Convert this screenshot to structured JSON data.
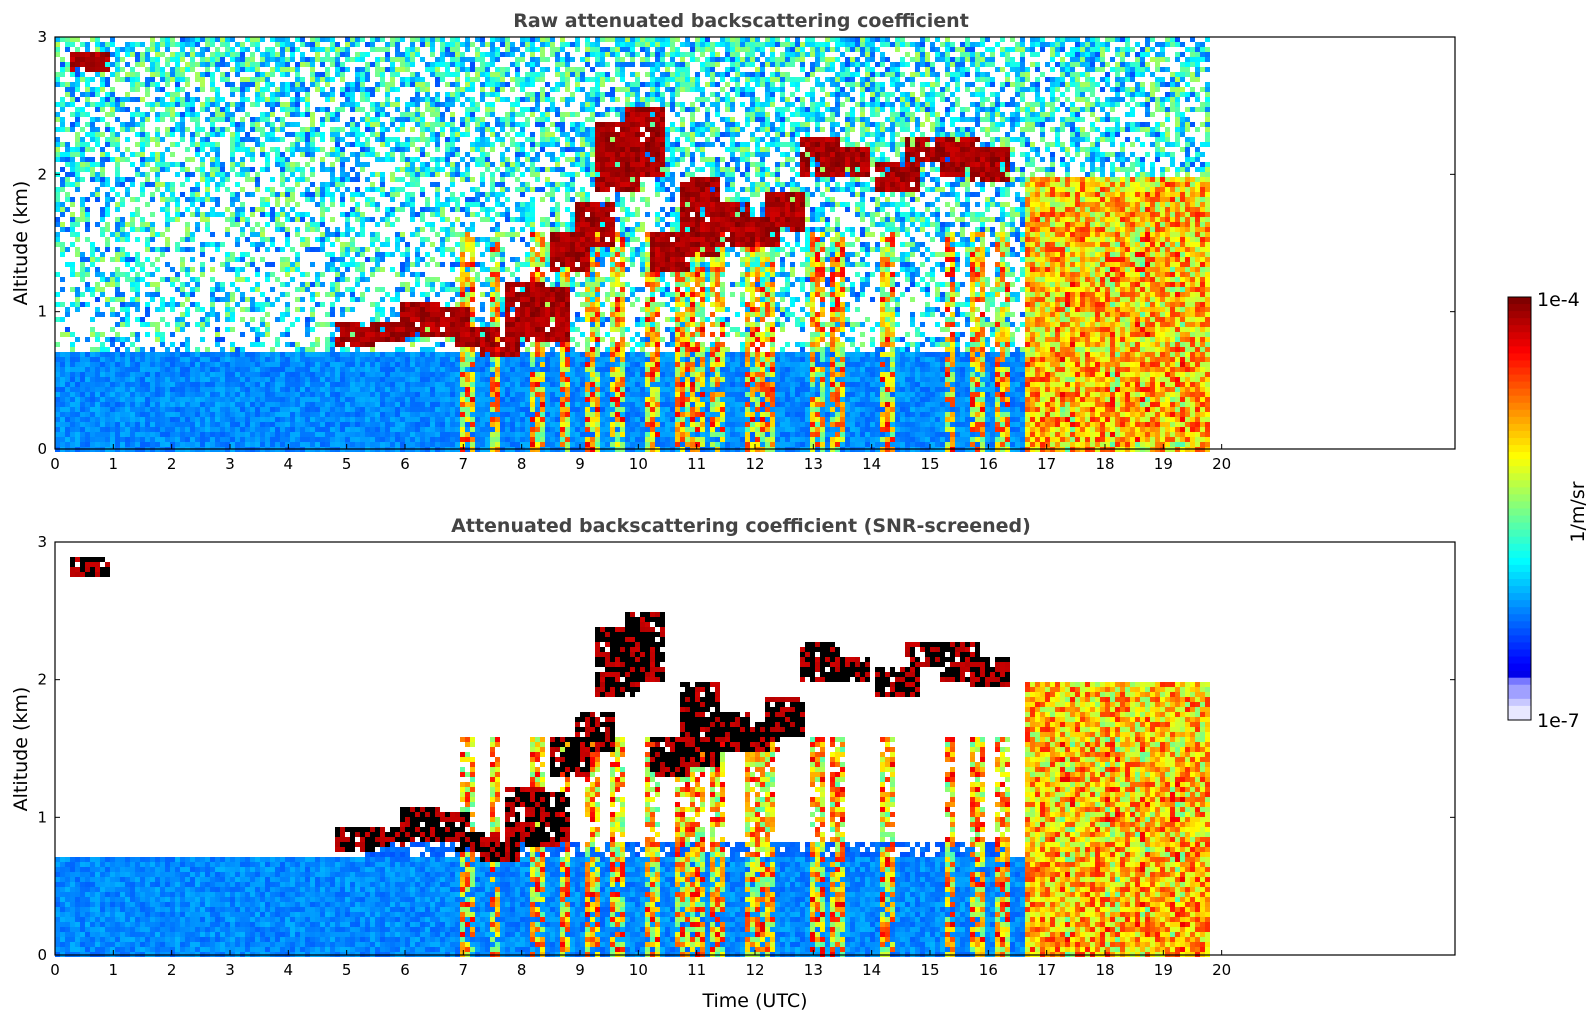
{
  "colors": {
    "jet": [
      "#00008f",
      "#0000ff",
      "#0080ff",
      "#00ffff",
      "#80ff80",
      "#ffff00",
      "#ff8000",
      "#ff0000",
      "#800000"
    ],
    "faint_blues": [
      "#e8e8ff",
      "#c8c8ff",
      "#a0a0ff",
      "#7878ff"
    ],
    "title": "#444444"
  },
  "chart_data": [
    {
      "type": "heatmap",
      "title": "Raw attenuated backscattering coefficient",
      "xlabel": "",
      "ylabel": "Altitude (km)",
      "xlim": [
        0,
        24
      ],
      "ylim": [
        0,
        3
      ],
      "x_ticks": [
        "0",
        "1",
        "2",
        "3",
        "4",
        "5",
        "6",
        "7",
        "8",
        "9",
        "10",
        "11",
        "12",
        "13",
        "14",
        "15",
        "16",
        "17",
        "18",
        "19",
        "20"
      ],
      "y_ticks": [
        "0",
        "1",
        "2",
        "3"
      ],
      "data_end_hour": 19.8,
      "screened": false
    },
    {
      "type": "heatmap",
      "title": "Attenuated backscattering coefficient (SNR-screened)",
      "xlabel": "Time (UTC)",
      "ylabel": "Altitude (km)",
      "xlim": [
        0,
        24
      ],
      "ylim": [
        0,
        3
      ],
      "x_ticks": [
        "0",
        "1",
        "2",
        "3",
        "4",
        "5",
        "6",
        "7",
        "8",
        "9",
        "10",
        "11",
        "12",
        "13",
        "14",
        "15",
        "16",
        "17",
        "18",
        "19",
        "20"
      ],
      "y_ticks": [
        "0",
        "1",
        "2",
        "3"
      ],
      "data_end_hour": 19.8,
      "screened": true
    }
  ],
  "colorbar": {
    "label": "1/m/sr",
    "max_label": "1e-4",
    "min_label": "1e-7",
    "scale": "log"
  }
}
